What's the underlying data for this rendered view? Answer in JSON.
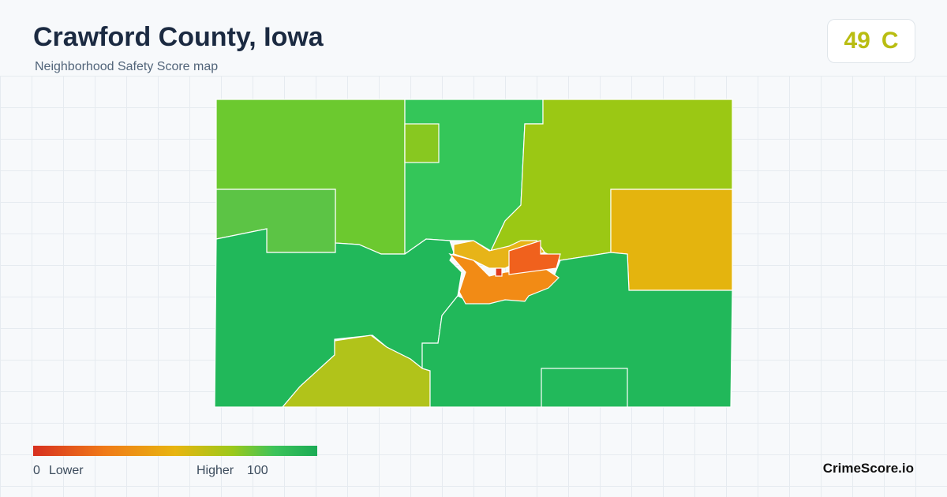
{
  "header": {
    "title": "Crawford County, Iowa",
    "subtitle": "Neighborhood Safety Score map"
  },
  "score": {
    "value": "49",
    "grade": "C"
  },
  "legend": {
    "min": "0",
    "min_label": "Lower",
    "max_label": "Higher",
    "max": "100"
  },
  "brand": "CrimeScore.io"
}
